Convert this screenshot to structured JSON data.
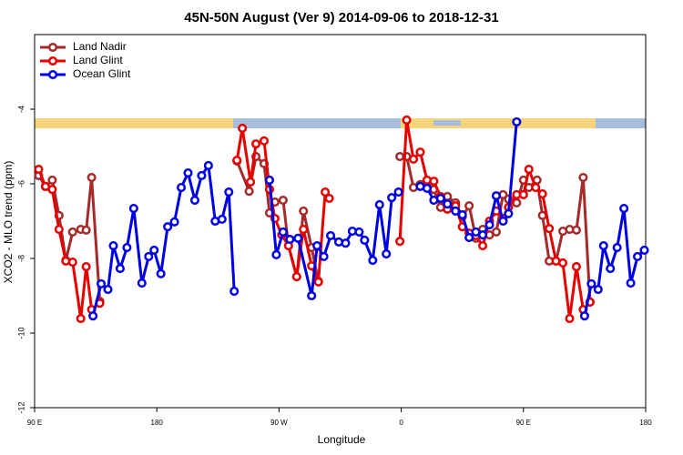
{
  "chart_data": {
    "type": "line",
    "title": "45N-50N August (Ver 9)   2014-09-06 to 2018-12-31",
    "x_label": "Longitude",
    "y_label": "XCO2 - MLO trend (ppm)",
    "xlim": [
      90,
      540
    ],
    "xticks": [
      {
        "value": 90,
        "label": "90 E"
      },
      180,
      {
        "value": 270,
        "label": "90 W"
      },
      {
        "value": 360,
        "label": "0"
      },
      {
        "value": 450,
        "label": "90 E"
      },
      {
        "value": 540,
        "label": "180"
      }
    ],
    "ylim": [
      -12,
      -2
    ],
    "yticks": [
      -12,
      -10,
      -8,
      -6,
      -4
    ],
    "legend": "top-left",
    "series": [
      {
        "name": "Land Nadir",
        "color": "#a52a2a",
        "x": [
          93,
          98,
          103,
          108,
          113,
          118,
          124,
          128,
          132,
          138,
          null,
          239,
          248,
          253,
          259,
          263,
          267,
          273,
          277,
          283,
          288,
          294,
          299,
          null,
          359,
          364,
          369,
          374,
          379,
          384,
          389,
          394,
          400,
          405,
          410,
          415,
          420,
          425,
          430,
          435,
          439,
          445,
          450,
          454,
          460,
          464,
          469,
          474,
          479,
          484,
          489,
          494,
          499
        ],
        "values": [
          -5.78,
          -6.07,
          -5.9,
          -6.85,
          -8.05,
          -7.29,
          -7.22,
          -7.24,
          -5.83,
          -9.15,
          null,
          -5.39,
          -6.2,
          -5.27,
          -5.46,
          -6.78,
          -6.49,
          -6.44,
          -7.66,
          -8.49,
          -6.73,
          -7.71,
          -8.61,
          null,
          -5.27,
          -5.27,
          -6.1,
          -6.02,
          -6.07,
          -6.15,
          -6.63,
          -6.34,
          -6.51,
          -6.88,
          -6.59,
          -7.46,
          -7.22,
          -7.37,
          -7.29,
          -6.29,
          -6.41,
          -6.51,
          -5.9,
          -6.1,
          -5.9,
          -6.85,
          -8.07,
          -8.07,
          -7.27,
          -7.22,
          -7.24,
          -5.83,
          -9.17
        ]
      },
      {
        "name": "Land Glint",
        "color": "#e60000",
        "x": [
          93,
          98,
          103,
          108,
          113,
          118,
          124,
          128,
          132,
          138,
          null,
          239,
          243,
          249,
          253,
          259,
          263,
          267,
          272,
          277,
          283,
          288,
          294,
          299,
          304,
          307,
          null,
          359,
          364,
          369,
          374,
          379,
          384,
          389,
          394,
          400,
          405,
          410,
          415,
          420,
          425,
          430,
          435,
          439,
          445,
          450,
          454,
          459,
          464,
          469,
          474,
          479,
          484,
          489,
          494,
          499
        ],
        "values": [
          -5.61,
          -6.07,
          -6.15,
          -7.22,
          -8.07,
          -8.1,
          -9.61,
          -8.22,
          -9.37,
          -9.2,
          null,
          -5.37,
          -4.51,
          -5.95,
          -4.93,
          -4.85,
          -6.15,
          -6.93,
          -7.37,
          -7.66,
          -8.49,
          -7.22,
          -8.2,
          -8.63,
          -6.22,
          -6.39,
          null,
          -7.54,
          -4.29,
          -5.34,
          -5.15,
          -5.9,
          -5.93,
          -6.34,
          -6.68,
          -6.59,
          -7.15,
          -7.32,
          -7.39,
          -7.66,
          -7.0,
          -6.73,
          -6.93,
          -6.63,
          -6.29,
          -6.29,
          -5.61,
          -6.1,
          -6.27,
          -7.2,
          -8.07,
          -8.12,
          -9.61,
          -8.22,
          -9.37,
          -9.17
        ]
      },
      {
        "name": "Ocean Glint",
        "color": "#0000e6",
        "x": [
          133,
          139,
          144,
          148,
          153,
          158,
          163,
          169,
          174,
          178,
          183,
          188,
          193,
          198,
          203,
          208,
          213,
          218,
          223,
          228,
          233,
          237,
          null,
          263,
          268,
          273,
          278,
          284,
          294,
          298,
          303,
          308,
          314,
          319,
          324,
          329,
          333,
          339,
          344,
          349,
          353,
          358,
          null,
          374,
          379,
          384,
          389,
          394,
          400,
          405,
          410,
          415,
          420,
          425,
          430,
          435,
          439,
          445,
          null,
          495,
          500,
          505,
          509,
          514,
          519,
          524,
          529,
          534,
          539
        ],
        "values": [
          -9.54,
          -8.68,
          -8.83,
          -7.66,
          -8.27,
          -7.71,
          -6.66,
          -8.66,
          -7.95,
          -7.78,
          -8.41,
          -7.15,
          -7.02,
          -6.1,
          -5.71,
          -6.44,
          -5.78,
          -5.51,
          -7.0,
          -6.95,
          -6.22,
          -8.88,
          null,
          -5.9,
          -7.9,
          -7.29,
          -7.49,
          -7.46,
          -9.0,
          -7.66,
          -7.95,
          -7.39,
          -7.56,
          -7.59,
          -7.27,
          -7.29,
          -7.51,
          -8.05,
          -6.56,
          -7.88,
          -6.37,
          -6.22,
          null,
          -6.07,
          -6.12,
          -6.44,
          -6.39,
          -6.54,
          -6.73,
          -6.83,
          -7.44,
          -7.29,
          -7.37,
          -7.1,
          -6.32,
          -7.0,
          -6.8,
          -4.34,
          null,
          -9.54,
          -8.68,
          -8.83,
          -7.66,
          -8.27,
          -7.71,
          -6.66,
          -8.66,
          -7.95,
          -7.78
        ]
      }
    ]
  }
}
